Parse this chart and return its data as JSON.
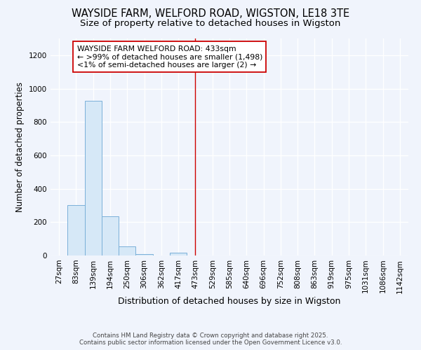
{
  "title": "WAYSIDE FARM, WELFORD ROAD, WIGSTON, LE18 3TE",
  "subtitle": "Size of property relative to detached houses in Wigston",
  "xlabel": "Distribution of detached houses by size in Wigston",
  "ylabel": "Number of detached properties",
  "bar_color": "#d6e8f7",
  "bar_edge_color": "#7ab0d8",
  "vline_x_index": 8,
  "vline_color": "#cc0000",
  "categories": [
    "27sqm",
    "83sqm",
    "139sqm",
    "194sqm",
    "250sqm",
    "306sqm",
    "362sqm",
    "417sqm",
    "473sqm",
    "529sqm",
    "585sqm",
    "640sqm",
    "696sqm",
    "752sqm",
    "808sqm",
    "863sqm",
    "919sqm",
    "975sqm",
    "1031sqm",
    "1086sqm",
    "1142sqm"
  ],
  "values": [
    0,
    300,
    925,
    235,
    55,
    10,
    0,
    15,
    0,
    0,
    0,
    0,
    0,
    0,
    0,
    0,
    0,
    0,
    0,
    0,
    0
  ],
  "ylim": [
    0,
    1300
  ],
  "yticks": [
    0,
    200,
    400,
    600,
    800,
    1000,
    1200
  ],
  "annotation_title": "WAYSIDE FARM WELFORD ROAD: 433sqm",
  "annotation_line1": "← >99% of detached houses are smaller (1,498)",
  "annotation_line2": "<1% of semi-detached houses are larger (2) →",
  "footer_line1": "Contains HM Land Registry data © Crown copyright and database right 2025.",
  "footer_line2": "Contains public sector information licensed under the Open Government Licence v3.0.",
  "background_color": "#f0f4fc",
  "plot_background": "#f0f4fc",
  "grid_color": "#ffffff",
  "title_fontsize": 10.5,
  "subtitle_fontsize": 9.5,
  "tick_fontsize": 7.5,
  "ylabel_fontsize": 8.5,
  "xlabel_fontsize": 9
}
